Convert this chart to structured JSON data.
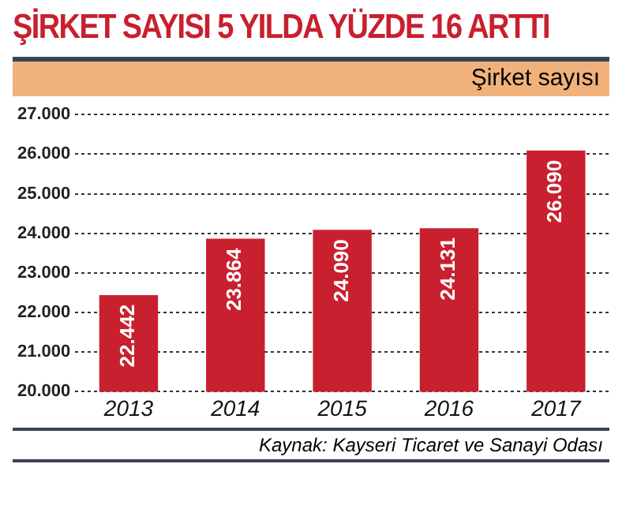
{
  "chart_data": {
    "type": "bar",
    "title": "ŞİRKET SAYISI 5 YILDA YÜZDE 16 ARTTI",
    "subtitle": "Şirket sayısı",
    "categories": [
      "2013",
      "2014",
      "2015",
      "2016",
      "2017"
    ],
    "values": [
      22442,
      23864,
      24090,
      24131,
      26090
    ],
    "value_labels": [
      "22.442",
      "23.864",
      "24.090",
      "24.131",
      "26.090"
    ],
    "color": "#c8202e",
    "ylim": [
      20000,
      27000
    ],
    "yticks": [
      {
        "value": 20000,
        "label": "20.000"
      },
      {
        "value": 21000,
        "label": "21.000"
      },
      {
        "value": 22000,
        "label": "22.000"
      },
      {
        "value": 23000,
        "label": "23.000"
      },
      {
        "value": 24000,
        "label": "24.000"
      },
      {
        "value": 25000,
        "label": "25.000"
      },
      {
        "value": 26000,
        "label": "26.000"
      },
      {
        "value": 27000,
        "label": "27.000"
      }
    ],
    "grid": "y",
    "annotations": [
      "Kaynak: Kayseri Ticaret ve Sanayi Odası"
    ]
  }
}
